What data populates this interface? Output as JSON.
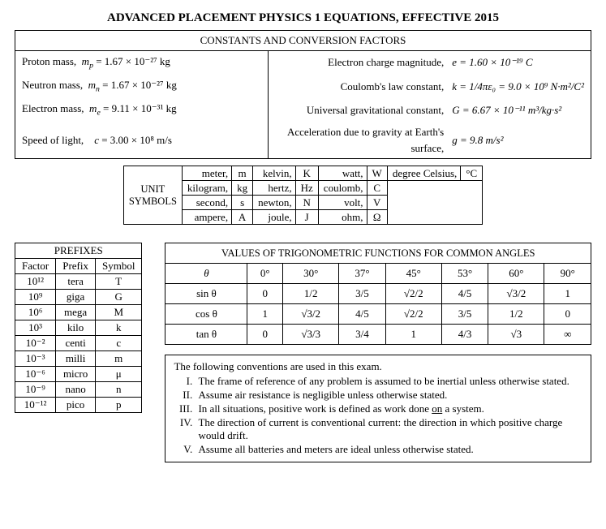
{
  "title": "ADVANCED PLACEMENT PHYSICS 1 EQUATIONS, EFFECTIVE 2015",
  "constants": {
    "header": "CONSTANTS AND CONVERSION FACTORS",
    "left": [
      {
        "desc": "Proton mass,",
        "sym": "m",
        "sub": "p",
        "val": "= 1.67 × 10⁻²⁷  kg"
      },
      {
        "desc": "Neutron mass,",
        "sym": "m",
        "sub": "n",
        "val": "= 1.67 × 10⁻²⁷  kg"
      },
      {
        "desc": "Electron mass,",
        "sym": "m",
        "sub": "e",
        "val": "= 9.11 × 10⁻³¹  kg"
      },
      {
        "desc": "Speed of light,",
        "sym": "c",
        "sub": "",
        "val": "= 3.00 × 10⁸  m/s"
      }
    ],
    "right": [
      {
        "desc": "Electron charge magnitude,",
        "eq": "e = 1.60 × 10⁻¹⁹  C"
      },
      {
        "desc": "Coulomb's law constant,",
        "eq": "k = 1/4πε₀ = 9.0 × 10⁹  N·m²/C²"
      },
      {
        "desc": "Universal gravitational constant,",
        "eq": "G = 6.67 × 10⁻¹¹  m³/kg·s²"
      },
      {
        "desc": "Acceleration due to gravity at Earth's surface,",
        "eq": "g = 9.8  m/s²"
      }
    ]
  },
  "units": {
    "label1": "UNIT",
    "label2": "SYMBOLS",
    "rows": [
      [
        "meter,",
        "m",
        "kelvin,",
        "K",
        "watt,",
        "W",
        "degree Celsius,",
        "°C"
      ],
      [
        "kilogram,",
        "kg",
        "hertz,",
        "Hz",
        "coulomb,",
        "C",
        "",
        ""
      ],
      [
        "second,",
        "s",
        "newton,",
        "N",
        "volt,",
        "V",
        "",
        ""
      ],
      [
        "ampere,",
        "A",
        "joule,",
        "J",
        "ohm,",
        "Ω",
        "",
        ""
      ]
    ]
  },
  "prefixes": {
    "header": "PREFIXES",
    "cols": [
      "Factor",
      "Prefix",
      "Symbol"
    ],
    "rows": [
      [
        "10¹²",
        "tera",
        "T"
      ],
      [
        "10⁹",
        "giga",
        "G"
      ],
      [
        "10⁶",
        "mega",
        "M"
      ],
      [
        "10³",
        "kilo",
        "k"
      ],
      [
        "10⁻²",
        "centi",
        "c"
      ],
      [
        "10⁻³",
        "milli",
        "m"
      ],
      [
        "10⁻⁶",
        "micro",
        "μ"
      ],
      [
        "10⁻⁹",
        "nano",
        "n"
      ],
      [
        "10⁻¹²",
        "pico",
        "p"
      ]
    ]
  },
  "trig": {
    "header": "VALUES OF TRIGONOMETRIC FUNCTIONS FOR COMMON ANGLES",
    "theta": "θ",
    "angles": [
      "0°",
      "30°",
      "37°",
      "45°",
      "53°",
      "60°",
      "90°"
    ],
    "rows": [
      {
        "fn": "sin θ",
        "vals": [
          "0",
          "1/2",
          "3/5",
          "√2/2",
          "4/5",
          "√3/2",
          "1"
        ]
      },
      {
        "fn": "cos θ",
        "vals": [
          "1",
          "√3/2",
          "4/5",
          "√2/2",
          "3/5",
          "1/2",
          "0"
        ]
      },
      {
        "fn": "tan θ",
        "vals": [
          "0",
          "√3/3",
          "3/4",
          "1",
          "4/3",
          "√3",
          "∞"
        ]
      }
    ]
  },
  "conventions": {
    "intro": "The following conventions are used in this exam.",
    "items": [
      "The frame of reference of any problem is assumed to be inertial unless otherwise stated.",
      "Assume air resistance is negligible unless otherwise stated.",
      "In all situations, positive work is defined as work done on a system.",
      "The direction of current is conventional current: the direction in which positive charge would drift.",
      "Assume all batteries and meters are ideal unless otherwise stated."
    ]
  }
}
